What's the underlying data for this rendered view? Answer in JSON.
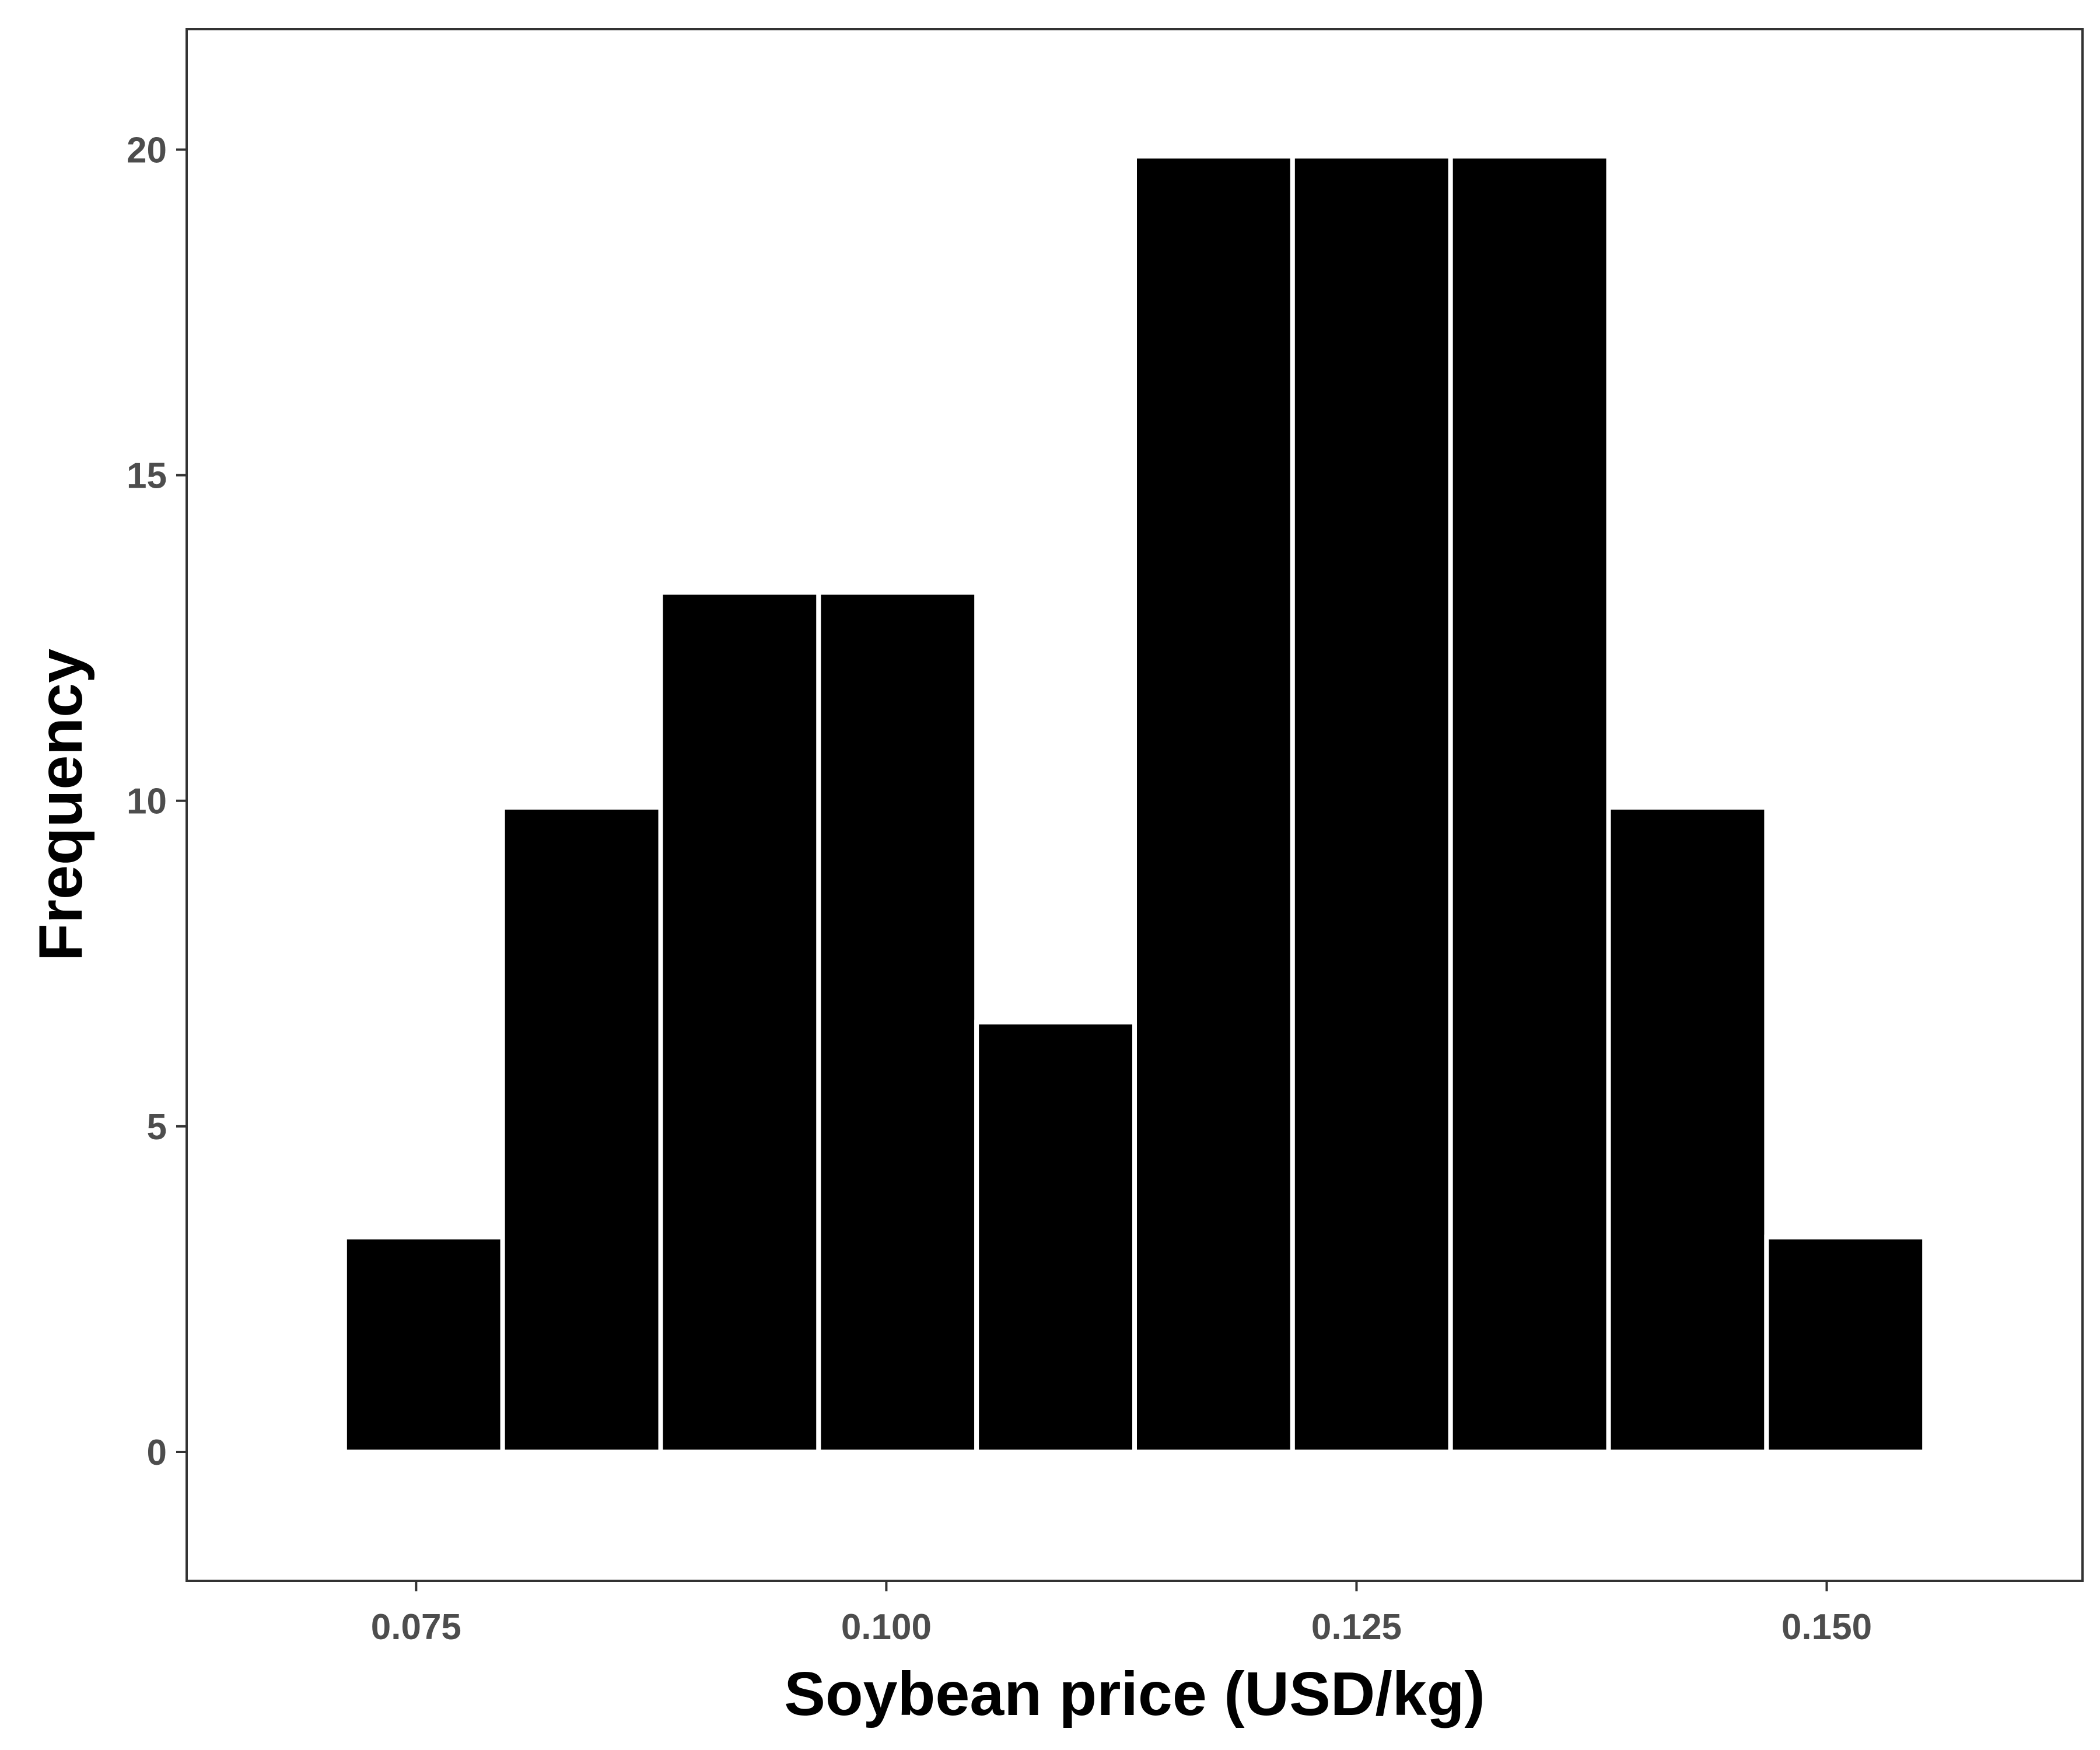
{
  "chart_data": {
    "type": "bar",
    "subtype": "histogram",
    "title": "",
    "xlabel": "Soybean price (USD/kg)",
    "ylabel": "Frequency",
    "bins": [
      {
        "x0": 0.0712,
        "x1": 0.0796,
        "value": 3.3
      },
      {
        "x0": 0.0796,
        "x1": 0.088,
        "value": 9.9
      },
      {
        "x0": 0.088,
        "x1": 0.0964,
        "value": 13.2
      },
      {
        "x0": 0.0964,
        "x1": 0.1048,
        "value": 13.2
      },
      {
        "x0": 0.1048,
        "x1": 0.1132,
        "value": 6.6
      },
      {
        "x0": 0.1132,
        "x1": 0.1216,
        "value": 19.9
      },
      {
        "x0": 0.1216,
        "x1": 0.13,
        "value": 19.9
      },
      {
        "x0": 0.13,
        "x1": 0.1384,
        "value": 19.9
      },
      {
        "x0": 0.1384,
        "x1": 0.1468,
        "value": 9.9
      },
      {
        "x0": 0.1468,
        "x1": 0.1552,
        "value": 3.3
      }
    ],
    "xlim": [
      0.0628,
      0.1636
    ],
    "ylim": [
      -1.98,
      21.85
    ],
    "xticks": [
      0.075,
      0.1,
      0.125,
      0.15
    ],
    "xtick_labels": [
      "0.075",
      "0.100",
      "0.125",
      "0.150"
    ],
    "yticks": [
      0,
      5,
      10,
      15,
      20
    ],
    "ytick_labels": [
      "0",
      "5",
      "10",
      "15",
      "20"
    ],
    "grid": false,
    "bar_fill_color": "#000000",
    "bar_edge_color": "#ffffff",
    "panel_border_color": "#333333",
    "tick_color": "#333333",
    "tick_label_color": "#4d4d4d"
  }
}
